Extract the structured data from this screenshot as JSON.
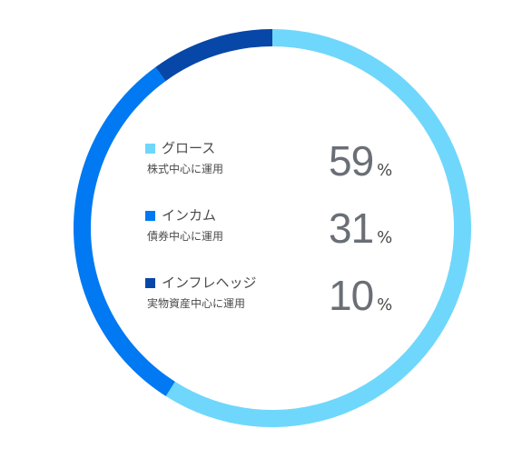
{
  "chart_data": {
    "type": "pie",
    "style": "donut",
    "categories": [
      "グロース",
      "インカム",
      "インフレヘッジ"
    ],
    "descriptions": [
      "株式中心に運用",
      "債券中心に運用",
      "実物資産中心に運用"
    ],
    "values": [
      59,
      31,
      10
    ],
    "unit": "%",
    "colors": [
      "#6fd7fb",
      "#0079f2",
      "#0747a8"
    ],
    "start": "top",
    "direction": "clockwise",
    "legend_placement": "center"
  }
}
